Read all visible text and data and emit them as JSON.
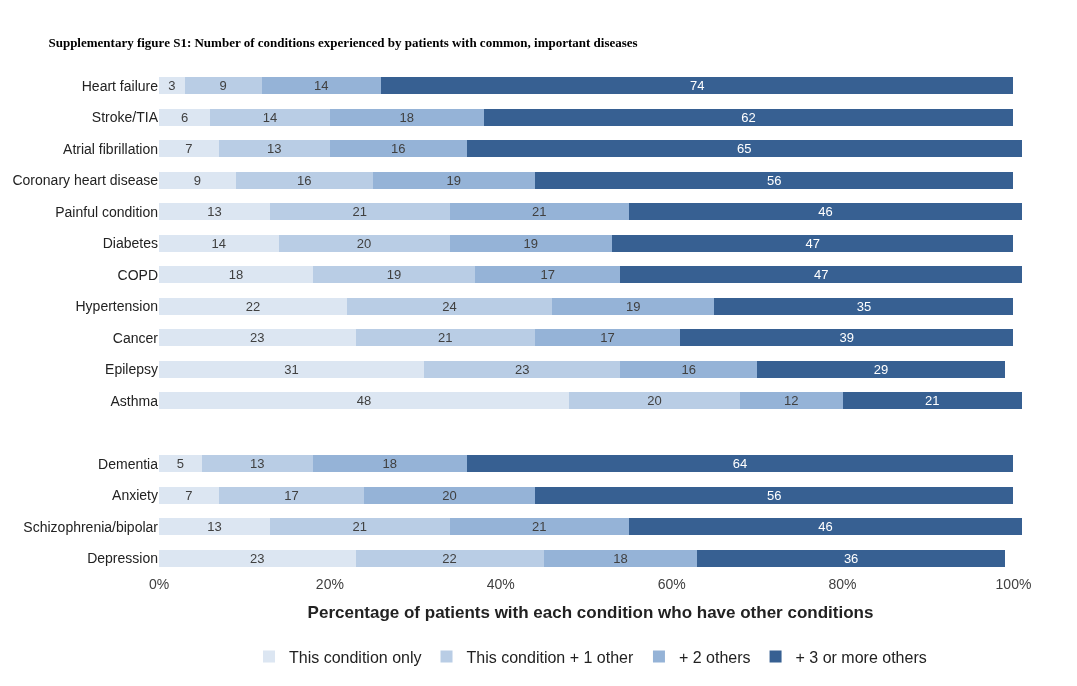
{
  "chart_data": {
    "type": "bar",
    "orientation": "horizontal",
    "stacked": true,
    "data_labels": true,
    "title": "Supplementary figure S1: Number of conditions experienced by patients with common, important diseases",
    "xlabel": "Percentage of patients with each condition who have other conditions",
    "categories": [
      "Heart failure",
      "Stroke/TIA",
      "Atrial fibrillation",
      "Coronary heart disease",
      "Painful condition",
      "Diabetes",
      "COPD",
      "Hypertension",
      "Cancer",
      "Epilepsy",
      "Asthma",
      null,
      "Dementia",
      "Anxiety",
      "Schizophrenia/bipolar",
      "Depression"
    ],
    "series": [
      {
        "name": "This condition only",
        "color": "#dce6f2",
        "values": [
          3,
          6,
          7,
          9,
          13,
          14,
          18,
          22,
          23,
          31,
          48,
          null,
          5,
          7,
          13,
          23
        ]
      },
      {
        "name": "This condition + 1 other",
        "color": "#b9cde5",
        "values": [
          9,
          14,
          13,
          16,
          21,
          20,
          19,
          24,
          21,
          23,
          20,
          null,
          13,
          17,
          21,
          22
        ]
      },
      {
        "name": "+ 2 others",
        "color": "#95b3d7",
        "values": [
          14,
          18,
          16,
          19,
          21,
          19,
          17,
          19,
          17,
          16,
          12,
          null,
          18,
          20,
          21,
          18
        ]
      },
      {
        "name": "+ 3 or more others",
        "color": "#376092",
        "values": [
          74,
          62,
          65,
          56,
          46,
          47,
          47,
          35,
          39,
          29,
          21,
          null,
          64,
          56,
          46,
          36
        ]
      }
    ],
    "xlim": [
      0,
      101
    ],
    "xticks": [
      {
        "value": 0,
        "label": "0%"
      },
      {
        "value": 20,
        "label": "20%"
      },
      {
        "value": 40,
        "label": "40%"
      },
      {
        "value": 60,
        "label": "60%"
      },
      {
        "value": 80,
        "label": "80%"
      },
      {
        "value": 100,
        "label": "100%"
      }
    ],
    "legend": "bottom"
  }
}
